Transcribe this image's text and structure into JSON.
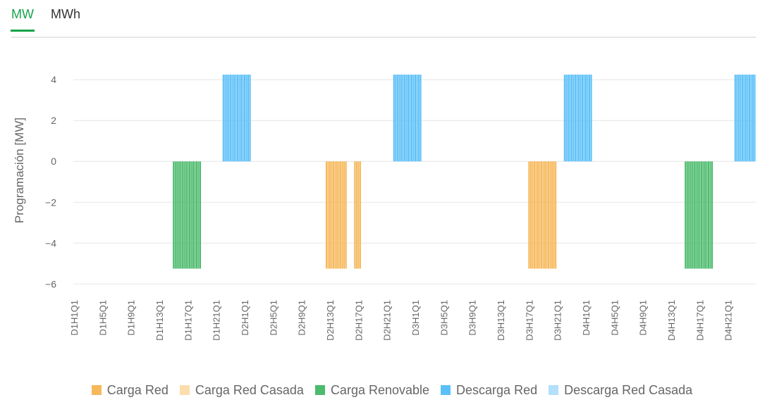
{
  "tabs": [
    {
      "label": "MW",
      "active": true
    },
    {
      "label": "MWh",
      "active": false
    }
  ],
  "chart_data": {
    "type": "bar",
    "ylabel": "Programación [MW]",
    "ylim": [
      -6.3,
      4.8
    ],
    "yticks": [
      4,
      2,
      0,
      -2,
      -4,
      -6
    ],
    "ytick_labels": [
      "4",
      "2",
      "0",
      "−2",
      "−4",
      "−6"
    ],
    "grid": true,
    "legend_position": "bottom",
    "categories_count": 384,
    "xticks_labeled": [
      "D1H1Q1",
      "D1H5Q1",
      "D1H9Q1",
      "D1H13Q1",
      "D1H17Q1",
      "D1H21Q1",
      "D2H1Q1",
      "D2H5Q1",
      "D2H9Q1",
      "D2H13Q1",
      "D2H17Q1",
      "D2H21Q1",
      "D3H1Q1",
      "D3H5Q1",
      "D3H9Q1",
      "D3H13Q1",
      "D3H17Q1",
      "D3H21Q1",
      "D4H1Q1",
      "D4H5Q1",
      "D4H9Q1",
      "D4H13Q1",
      "D4H17Q1",
      "D4H21Q1"
    ],
    "series": [
      {
        "name": "Carga Red",
        "color": "#f6b85a",
        "value": -5.25,
        "ranges": [
          [
            "D2H12Q3",
            "D2H15Q2"
          ],
          [
            "D2H16Q3",
            "D2H17Q2"
          ],
          [
            "D3H17Q1",
            "D3H20Q4"
          ]
        ]
      },
      {
        "name": "Carga Red Casada",
        "color": "#fddcae",
        "value": 0,
        "ranges": []
      },
      {
        "name": "Carga Renovable",
        "color": "#4cbb6c",
        "value": -5.25,
        "ranges": [
          [
            "D1H15Q1",
            "D1H18Q4"
          ],
          [
            "D4H15Q1",
            "D4H18Q4"
          ]
        ]
      },
      {
        "name": "Descarga Red",
        "color": "#5bc0f8",
        "value": 4.25,
        "ranges": [
          [
            "D1H22Q1",
            "D2H1Q4"
          ],
          [
            "D2H22Q1",
            "D3H1Q4"
          ],
          [
            "D3H22Q1",
            "D4H1Q4"
          ],
          [
            "D4H22Q1",
            "D4H24Q4"
          ]
        ]
      },
      {
        "name": "Descarga Red Casada",
        "color": "#b3e0fb",
        "value": 0,
        "ranges": []
      }
    ]
  }
}
